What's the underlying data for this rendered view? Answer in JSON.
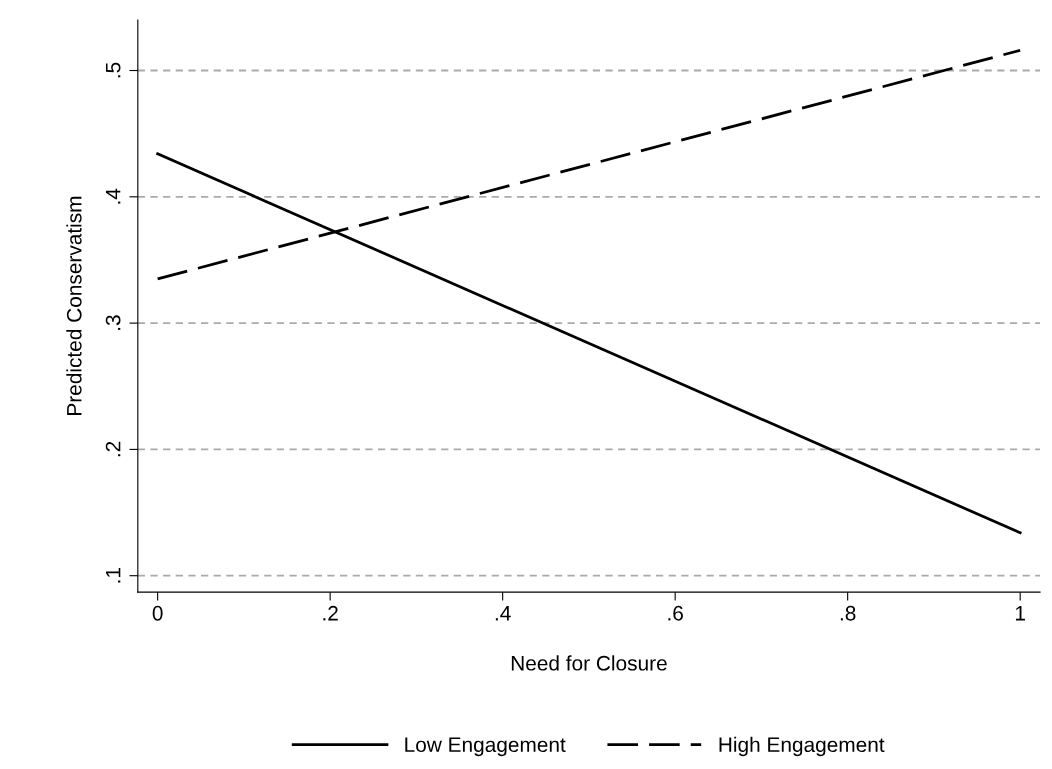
{
  "chart_data": {
    "type": "line",
    "xlabel": "Need for Closure",
    "ylabel": "Predicted Conservatism",
    "x": [
      0,
      1
    ],
    "series": [
      {
        "name": "Low Engagement",
        "color": "#000000",
        "values": [
          0.434,
          0.134
        ],
        "line_style": "solid"
      },
      {
        "name": "High Engagement",
        "color": "#000000",
        "values": [
          0.335,
          0.516
        ],
        "line_style": "dashed"
      }
    ],
    "xlim": [
      -0.023,
      1.023
    ],
    "ylim": [
      0.087,
      0.54
    ],
    "xticks": [
      0,
      {
        "value": 0.2,
        "label": ".2"
      },
      {
        "value": 0.4,
        "label": ".4"
      },
      {
        "value": 0.6,
        "label": ".6"
      },
      {
        "value": 0.8,
        "label": ".8"
      },
      1
    ],
    "yticks": [
      {
        "value": 0.1,
        "label": ".1"
      },
      {
        "value": 0.2,
        "label": ".2"
      },
      {
        "value": 0.3,
        "label": ".3"
      },
      {
        "value": 0.4,
        "label": ".4"
      },
      {
        "value": 0.5,
        "label": ".5"
      }
    ],
    "grid": "y",
    "legend": "bottom",
    "marker": "none"
  }
}
